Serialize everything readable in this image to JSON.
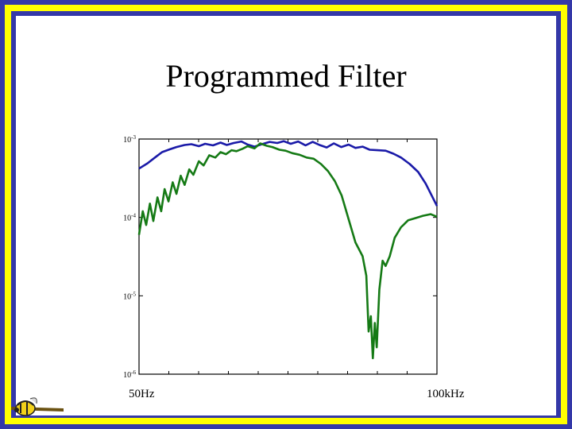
{
  "slide": {
    "title": "Programmed Filter",
    "colors": {
      "frame_blue": "#3438a8",
      "frame_yellow": "#ffff00",
      "blue_series": "#1a1aa8",
      "green_series": "#157a15"
    }
  },
  "chart_data": {
    "type": "line",
    "title": "Programmed Filter",
    "x_scale": "log",
    "y_scale": "log",
    "xlim": [
      50,
      100000
    ],
    "ylim": [
      1e-06,
      0.001
    ],
    "x_tick_labels": [
      "50Hz",
      "100kHz"
    ],
    "y_tick_labels": [
      {
        "base": "10",
        "exp": "-3",
        "value": 0.001
      },
      {
        "base": "10",
        "exp": "-4",
        "value": 0.0001
      },
      {
        "base": "10",
        "exp": "-5",
        "value": 1e-05
      },
      {
        "base": "10",
        "exp": "-6",
        "value": 1e-06
      }
    ],
    "series": [
      {
        "color": "#1a1aa8",
        "x": [
          50,
          62,
          75,
          90,
          110,
          130,
          160,
          190,
          230,
          270,
          330,
          400,
          470,
          560,
          680,
          800,
          950,
          1150,
          1400,
          1700,
          2000,
          2400,
          2900,
          3500,
          4200,
          5000,
          6000,
          7200,
          8700,
          10500,
          12500,
          15000,
          18000,
          22000,
          27000,
          33000,
          40000,
          50000,
          62000,
          75000,
          100000
        ],
        "y": [
          0.00042,
          0.00049,
          0.00058,
          0.00068,
          0.00074,
          0.00079,
          0.00084,
          0.00086,
          0.00081,
          0.00087,
          0.00083,
          0.0009,
          0.00084,
          0.00089,
          0.00093,
          0.00085,
          0.0008,
          0.00086,
          0.00092,
          0.00089,
          0.00094,
          0.00087,
          0.00093,
          0.00083,
          0.00092,
          0.00084,
          0.00078,
          0.00088,
          0.00079,
          0.00085,
          0.00077,
          0.0008,
          0.00073,
          0.00072,
          0.00071,
          0.00065,
          0.00058,
          0.00048,
          0.00038,
          0.00027,
          0.00014
        ]
      },
      {
        "color": "#157a15",
        "x": [
          50,
          55,
          60,
          66,
          72,
          80,
          88,
          96,
          106,
          118,
          130,
          145,
          160,
          180,
          200,
          230,
          260,
          300,
          350,
          400,
          460,
          530,
          600,
          700,
          800,
          950,
          1100,
          1300,
          1500,
          1800,
          2100,
          2500,
          3000,
          3600,
          4300,
          5200,
          6200,
          7400,
          8800,
          10500,
          12500,
          15000,
          16500,
          17500,
          18500,
          19500,
          20500,
          21500,
          23000,
          25000,
          27000,
          30000,
          34000,
          40000,
          48000,
          58000,
          70000,
          85000,
          100000
        ],
        "y": [
          6e-05,
          0.00012,
          8e-05,
          0.00015,
          9e-05,
          0.00018,
          0.00012,
          0.00023,
          0.00016,
          0.00028,
          0.0002,
          0.00034,
          0.00026,
          0.00041,
          0.00035,
          0.00052,
          0.00046,
          0.00062,
          0.00058,
          0.00068,
          0.00064,
          0.00072,
          0.0007,
          0.00075,
          0.00081,
          0.00076,
          0.00088,
          0.00082,
          0.00079,
          0.00073,
          0.00071,
          0.00066,
          0.00063,
          0.00058,
          0.00056,
          0.00048,
          0.00039,
          0.00029,
          0.00019,
          9.5e-05,
          4.8e-05,
          3.2e-05,
          1.8e-05,
          3.5e-06,
          5.5e-06,
          1.6e-06,
          4.5e-06,
          2.2e-06,
          1.2e-05,
          2.8e-05,
          2.4e-05,
          3.2e-05,
          5.5e-05,
          7.5e-05,
          9.2e-05,
          9.8e-05,
          0.000105,
          0.00011,
          0.000102
        ]
      }
    ]
  }
}
